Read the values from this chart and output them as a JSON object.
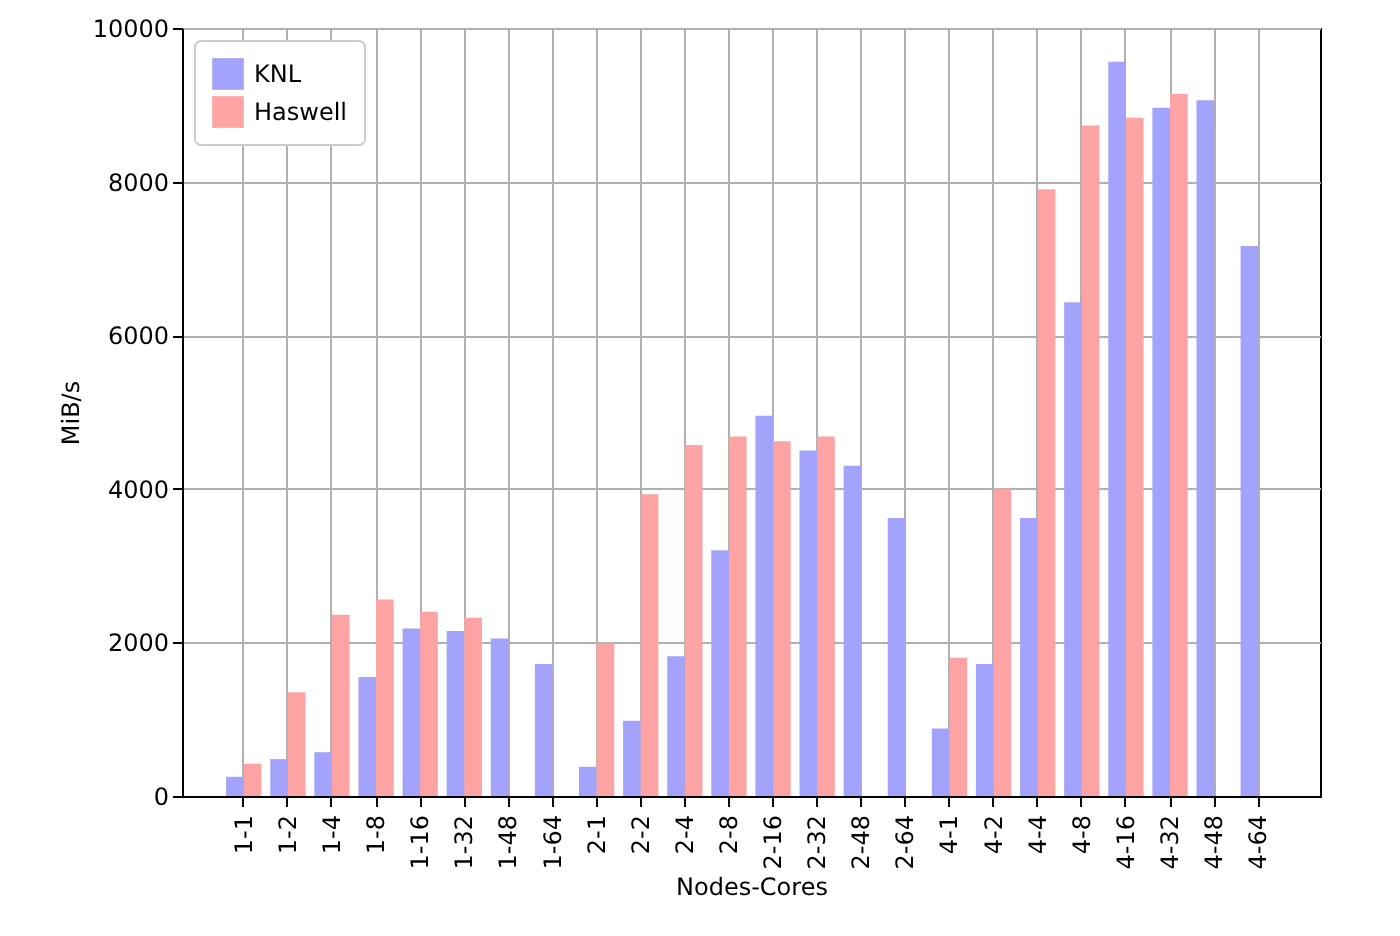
{
  "chart_data": {
    "type": "bar",
    "xlabel": "Nodes-Cores",
    "ylabel": "MiB/s",
    "categories": [
      "1-1",
      "1-2",
      "1-4",
      "1-8",
      "1-16",
      "1-32",
      "1-48",
      "1-64",
      "2-1",
      "2-2",
      "2-4",
      "2-8",
      "2-16",
      "2-32",
      "2-48",
      "2-64",
      "4-1",
      "4-2",
      "4-4",
      "4-8",
      "4-16",
      "4-32",
      "4-48",
      "4-64"
    ],
    "series": [
      {
        "name": "KNL",
        "color": "#a3a3fb",
        "values": [
          250,
          480,
          570,
          1550,
          2180,
          2150,
          2050,
          1720,
          380,
          980,
          1820,
          3200,
          4950,
          4500,
          4300,
          3620,
          880,
          1720,
          3620,
          6430,
          9560,
          8960,
          9060,
          7160
        ]
      },
      {
        "name": "Haswell",
        "color": "#fda3a3",
        "values": [
          420,
          1350,
          2360,
          2560,
          2400,
          2320,
          null,
          null,
          1990,
          3930,
          4570,
          4680,
          4620,
          4680,
          null,
          null,
          1800,
          4000,
          7900,
          8730,
          8830,
          9140,
          null,
          null
        ]
      }
    ],
    "ylim": [
      0,
      10000
    ],
    "yticks": [
      0,
      2000,
      4000,
      6000,
      8000,
      10000
    ],
    "grid": true,
    "legend": "top left"
  }
}
